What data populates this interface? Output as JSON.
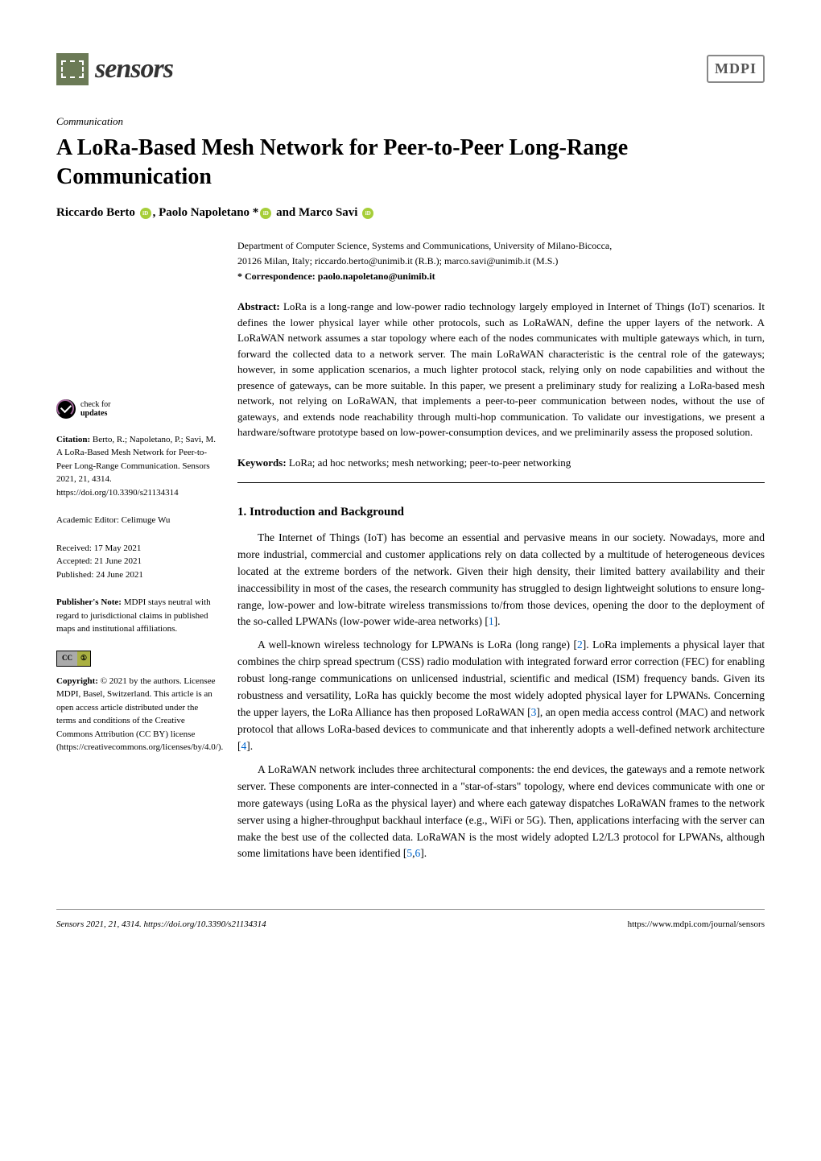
{
  "header": {
    "journal_name": "sensors",
    "publisher_logo": "MDPI"
  },
  "article": {
    "type": "Communication",
    "title": "A LoRa-Based Mesh Network for Peer-to-Peer Long-Range Communication",
    "authors_pre1": "Riccardo Berto ",
    "authors_pre2": ", Paolo Napoletano *",
    "authors_pre3": " and Marco Savi "
  },
  "affiliation": {
    "dept": "Department of Computer Science, Systems and Communications, University of Milano-Bicocca,",
    "address": "20126 Milan, Italy; riccardo.berto@unimib.it (R.B.); marco.savi@unimib.it (M.S.)",
    "correspondence": "* Correspondence: paolo.napoletano@unimib.it"
  },
  "abstract": {
    "label": "Abstract:",
    "text": " LoRa is a long-range and low-power radio technology largely employed in Internet of Things (IoT) scenarios. It defines the lower physical layer while other protocols, such as LoRaWAN, define the upper layers of the network. A LoRaWAN network assumes a star topology where each of the nodes communicates with multiple gateways which, in turn, forward the collected data to a network server. The main LoRaWAN characteristic is the central role of the gateways; however, in some application scenarios, a much lighter protocol stack, relying only on node capabilities and without the presence of gateways, can be more suitable. In this paper, we present a preliminary study for realizing a LoRa-based mesh network, not relying on LoRaWAN, that implements a peer-to-peer communication between nodes, without the use of gateways, and extends node reachability through multi-hop communication. To validate our investigations, we present a hardware/software prototype based on low-power-consumption devices, and we preliminarily assess the proposed solution."
  },
  "keywords": {
    "label": "Keywords:",
    "text": " LoRa; ad hoc networks; mesh networking; peer-to-peer networking"
  },
  "sidebar": {
    "check_updates_line1": "check for",
    "check_updates_line2": "updates",
    "citation_label": "Citation:",
    "citation_text": " Berto, R.; Napoletano, P.; Savi, M. A LoRa-Based Mesh Network for Peer-to-Peer Long-Range Communication. Sensors 2021, 21, 4314. https://doi.org/10.3390/s21134314",
    "editor_label": "Academic Editor: ",
    "editor_name": "Celimuge Wu",
    "received": "Received: 17 May 2021",
    "accepted": "Accepted: 21 June 2021",
    "published": "Published: 24 June 2021",
    "publishers_note_label": "Publisher's Note:",
    "publishers_note_text": " MDPI stays neutral with regard to jurisdictional claims in published maps and institutional affiliations.",
    "copyright_label": "Copyright:",
    "copyright_text": " © 2021 by the authors. Licensee MDPI, Basel, Switzerland. This article is an open access article distributed under the terms and conditions of the Creative Commons Attribution (CC BY) license (https://creativecommons.org/licenses/by/4.0/)."
  },
  "section1": {
    "heading": "1. Introduction and Background",
    "p1": "The Internet of Things (IoT) has become an essential and pervasive means in our society. Nowadays, more and more industrial, commercial and customer applications rely on data collected by a multitude of heterogeneous devices located at the extreme borders of the network. Given their high density, their limited battery availability and their inaccessibility in most of the cases, the research community has struggled to design lightweight solutions to ensure long-range, low-power and low-bitrate wireless transmissions to/from those devices, opening the door to the deployment of the so-called LPWANs (low-power wide-area networks) [",
    "p1_ref": "1",
    "p1_end": "].",
    "p2": "A well-known wireless technology for LPWANs is LoRa (long range) [",
    "p2_ref": "2",
    "p2_mid": "]. LoRa implements a physical layer that combines the chirp spread spectrum (CSS) radio modulation with integrated forward error correction (FEC) for enabling robust long-range communications on unlicensed industrial, scientific and medical (ISM) frequency bands. Given its robustness and versatility, LoRa has quickly become the most widely adopted physical layer for LPWANs. Concerning the upper layers, the LoRa Alliance has then proposed LoRaWAN [",
    "p2_ref2": "3",
    "p2_mid2": "], an open media access control (MAC) and network protocol that allows LoRa-based devices to communicate and that inherently adopts a well-defined network architecture [",
    "p2_ref3": "4",
    "p2_end": "].",
    "p3": "A LoRaWAN network includes three architectural components: the end devices, the gateways and a remote network server. These components are inter-connected in a \"star-of-stars\" topology, where end devices communicate with one or more gateways (using LoRa as the physical layer) and where each gateway dispatches LoRaWAN frames to the network server using a higher-throughput backhaul interface (e.g., WiFi or 5G). Then, applications interfacing with the server can make the best use of the collected data. LoRaWAN is the most widely adopted L2/L3 protocol for LPWANs, although some limitations have been identified [",
    "p3_ref1": "5",
    "p3_comma": ",",
    "p3_ref2": "6",
    "p3_end": "]."
  },
  "footer": {
    "left": "Sensors 2021, 21, 4314. https://doi.org/10.3390/s21134314",
    "right": "https://www.mdpi.com/journal/sensors"
  }
}
